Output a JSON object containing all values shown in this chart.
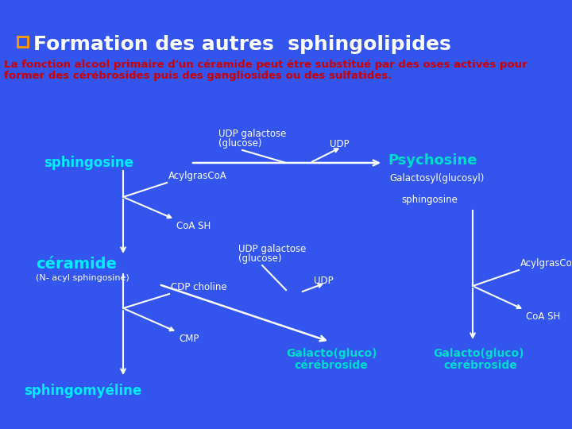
{
  "bg_color": "#3355ee",
  "title": "Formation des autres  sphingolipides",
  "title_color": "#ffffff",
  "title_fontsize": 18,
  "subtitle1": "La fonction alcool primaire d'un céramide peut être substitué par des oses activés pour",
  "subtitle2": "former des cérébrosides puis des gangliosides ou des sulfatides.",
  "subtitle_color": "#cc0000",
  "subtitle_fontsize": 9.5,
  "square_color": "#ff9900",
  "cyan": "#00eeff",
  "white": "#ffffff",
  "teal": "#00ddcc",
  "arrow_color": "#ffffff"
}
